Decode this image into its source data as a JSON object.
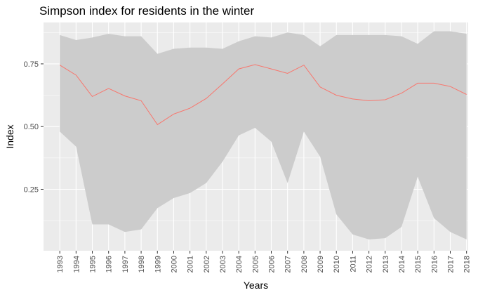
{
  "chart_data": {
    "type": "area",
    "title": "Simpson index for residents in the winter",
    "xlabel": "Years",
    "ylabel": "Index",
    "x": [
      "1993",
      "1994",
      "1995",
      "1996",
      "1997",
      "1998",
      "1999",
      "2000",
      "2001",
      "2002",
      "2003",
      "2004",
      "2005",
      "2006",
      "2007",
      "2008",
      "2009",
      "2010",
      "2011",
      "2012",
      "2013",
      "2014",
      "2015",
      "2016",
      "2017",
      "2018"
    ],
    "series": [
      {
        "values": [
          0.745,
          0.705,
          0.62,
          0.652,
          0.622,
          0.603,
          0.508,
          0.55,
          0.573,
          0.612,
          0.67,
          0.73,
          0.747,
          0.73,
          0.712,
          0.745,
          0.658,
          0.625,
          0.61,
          0.603,
          0.607,
          0.633,
          0.673,
          0.673,
          0.66,
          0.628
        ],
        "lower": [
          0.48,
          0.42,
          0.11,
          0.11,
          0.08,
          0.09,
          0.175,
          0.215,
          0.235,
          0.275,
          0.36,
          0.465,
          0.495,
          0.44,
          0.275,
          0.48,
          0.38,
          0.15,
          0.07,
          0.05,
          0.055,
          0.1,
          0.3,
          0.135,
          0.08,
          0.05
        ],
        "upper": [
          0.865,
          0.845,
          0.855,
          0.87,
          0.86,
          0.86,
          0.79,
          0.81,
          0.815,
          0.815,
          0.81,
          0.84,
          0.86,
          0.855,
          0.875,
          0.865,
          0.82,
          0.865,
          0.865,
          0.865,
          0.865,
          0.86,
          0.83,
          0.88,
          0.88,
          0.87
        ]
      }
    ],
    "yticks": [
      "0.25",
      "0.50",
      "0.75"
    ],
    "ylim": [
      0.005,
      0.915
    ],
    "grid": true,
    "colors": {
      "panel": "#EBEBEB",
      "ribbon": "#CCCCCC",
      "line": "#F8766D",
      "grid": "#FFFFFF"
    }
  }
}
